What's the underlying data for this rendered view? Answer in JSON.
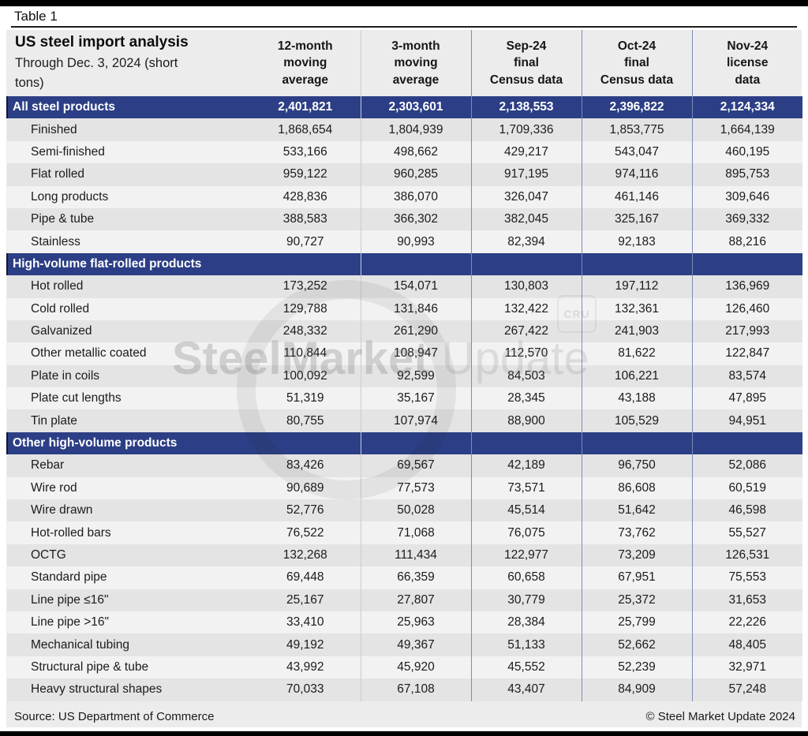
{
  "page": {
    "table_label": "Table 1"
  },
  "colors": {
    "navy": "#2c3e85",
    "panel": "#ececec",
    "stripe_dark": "#e4e4e4",
    "stripe_light": "#f2f2f2",
    "divider_light": "#c6ccd9",
    "divider_medium": "#7a8db9"
  },
  "chart_data": {
    "type": "table",
    "title": "US steel import analysis",
    "subtitle": "Through Dec. 3, 2024 (short tons)",
    "column_headers": [
      [
        "12-month",
        "moving",
        "average"
      ],
      [
        "3-month",
        "moving",
        "average"
      ],
      [
        "Sep-24",
        "final",
        "Census data"
      ],
      [
        "Oct-24",
        "final",
        "Census data"
      ],
      [
        "Nov-24",
        "license",
        "data"
      ]
    ],
    "rows": [
      {
        "row_type": "total",
        "label": "All steel products",
        "values": [
          2401821,
          2303601,
          2138553,
          2396822,
          2124334
        ]
      },
      {
        "row_type": "data",
        "label": "Finished",
        "values": [
          1868654,
          1804939,
          1709336,
          1853775,
          1664139
        ]
      },
      {
        "row_type": "data",
        "label": "Semi-finished",
        "values": [
          533166,
          498662,
          429217,
          543047,
          460195
        ]
      },
      {
        "row_type": "data",
        "label": "Flat rolled",
        "values": [
          959122,
          960285,
          917195,
          974116,
          895753
        ]
      },
      {
        "row_type": "data",
        "label": "Long products",
        "values": [
          428836,
          386070,
          326047,
          461146,
          309646
        ]
      },
      {
        "row_type": "data",
        "label": "Pipe & tube",
        "values": [
          388583,
          366302,
          382045,
          325167,
          369332
        ]
      },
      {
        "row_type": "data",
        "label": "Stainless",
        "values": [
          90727,
          90993,
          82394,
          92183,
          88216
        ]
      },
      {
        "row_type": "section",
        "label": "High-volume flat-rolled products",
        "values": []
      },
      {
        "row_type": "data",
        "label": "Hot rolled",
        "values": [
          173252,
          154071,
          130803,
          197112,
          136969
        ]
      },
      {
        "row_type": "data",
        "label": "Cold rolled",
        "values": [
          129788,
          131846,
          132422,
          132361,
          126460
        ]
      },
      {
        "row_type": "data",
        "label": "Galvanized",
        "values": [
          248332,
          261290,
          267422,
          241903,
          217993
        ]
      },
      {
        "row_type": "data",
        "label": "Other metallic coated",
        "values": [
          110844,
          108947,
          112570,
          81622,
          122847
        ]
      },
      {
        "row_type": "data",
        "label": "Plate in coils",
        "values": [
          100092,
          92599,
          84503,
          106221,
          83574
        ]
      },
      {
        "row_type": "data",
        "label": "Plate cut lengths",
        "values": [
          51319,
          35167,
          28345,
          43188,
          47895
        ]
      },
      {
        "row_type": "data",
        "label": "Tin plate",
        "values": [
          80755,
          107974,
          88900,
          105529,
          94951
        ]
      },
      {
        "row_type": "section",
        "label": "Other high-volume products",
        "values": []
      },
      {
        "row_type": "data",
        "label": "Rebar",
        "values": [
          83426,
          69567,
          42189,
          96750,
          52086
        ]
      },
      {
        "row_type": "data",
        "label": "Wire rod",
        "values": [
          90689,
          77573,
          73571,
          86608,
          60519
        ]
      },
      {
        "row_type": "data",
        "label": "Wire drawn",
        "values": [
          52776,
          50028,
          45514,
          51642,
          46598
        ]
      },
      {
        "row_type": "data",
        "label": "Hot-rolled bars",
        "values": [
          76522,
          71068,
          76075,
          73762,
          55527
        ]
      },
      {
        "row_type": "data",
        "label": "OCTG",
        "values": [
          132268,
          111434,
          122977,
          73209,
          126531
        ]
      },
      {
        "row_type": "data",
        "label": "Standard pipe",
        "values": [
          69448,
          66359,
          60658,
          67951,
          75553
        ]
      },
      {
        "row_type": "data",
        "label": "Line pipe ≤16\"",
        "values": [
          25167,
          27807,
          30779,
          25372,
          31653
        ]
      },
      {
        "row_type": "data",
        "label": "Line pipe >16\"",
        "values": [
          33410,
          25963,
          28384,
          25799,
          22226
        ]
      },
      {
        "row_type": "data",
        "label": "Mechanical tubing",
        "values": [
          49192,
          49367,
          51133,
          52662,
          48405
        ]
      },
      {
        "row_type": "data",
        "label": "Structural pipe & tube",
        "values": [
          43992,
          45920,
          45552,
          52239,
          32971
        ]
      },
      {
        "row_type": "data",
        "label": "Heavy structural shapes",
        "values": [
          70033,
          67108,
          43407,
          84909,
          57248
        ]
      }
    ]
  },
  "footer": {
    "source": "Source: US Department of Commerce",
    "copyright": "© Steel Market Update 2024"
  },
  "watermark": {
    "word1": "Steel",
    "word2": "Market",
    "word3": " Update",
    "badge": "CRU"
  }
}
